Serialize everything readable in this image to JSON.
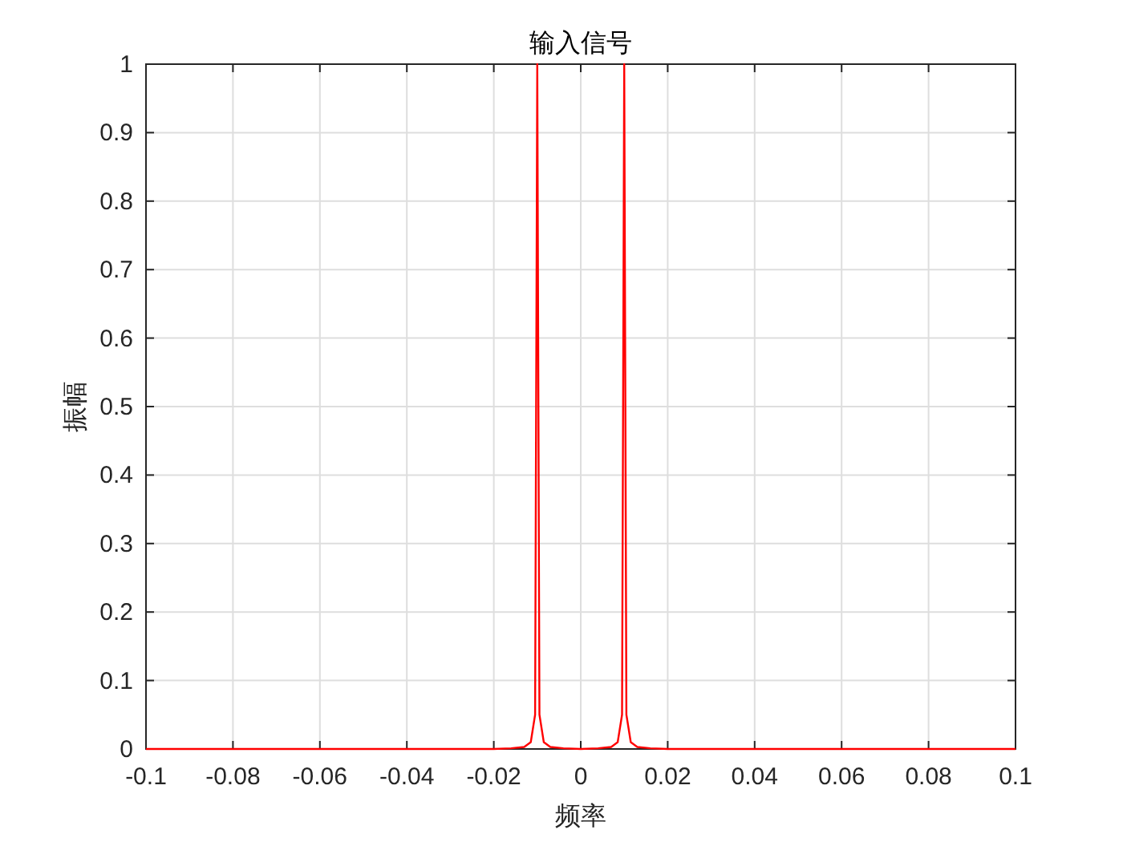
{
  "chart_data": {
    "type": "line",
    "title": "输入信号",
    "xlabel": "频率",
    "ylabel": "振幅",
    "x": [
      -0.1,
      -0.02,
      -0.016,
      -0.013,
      -0.0115,
      -0.0105,
      -0.01,
      -0.0095,
      -0.0085,
      -0.007,
      -0.004,
      0,
      0.004,
      0.007,
      0.0085,
      0.0095,
      0.01,
      0.0105,
      0.0115,
      0.013,
      0.016,
      0.02,
      0.1
    ],
    "series": [
      {
        "color": "#ff0000",
        "values": [
          0,
          0,
          0.001,
          0.003,
          0.01,
          0.05,
          1,
          0.05,
          0.01,
          0.003,
          0.001,
          0,
          0.001,
          0.003,
          0.01,
          0.05,
          1,
          0.05,
          0.01,
          0.003,
          0.001,
          0,
          0
        ]
      }
    ],
    "xlim": [
      -0.1,
      0.1
    ],
    "xticks": [
      -0.1,
      -0.08,
      -0.06,
      -0.04,
      -0.02,
      0,
      0.02,
      0.04,
      0.06,
      0.08,
      0.1
    ],
    "ylim": [
      0,
      1
    ],
    "yticks": [
      0,
      0.1,
      0.2,
      0.3,
      0.4,
      0.5,
      0.6,
      0.7,
      0.8,
      0.9,
      1
    ],
    "grid": true,
    "marker": "none",
    "line_style": "solid"
  }
}
